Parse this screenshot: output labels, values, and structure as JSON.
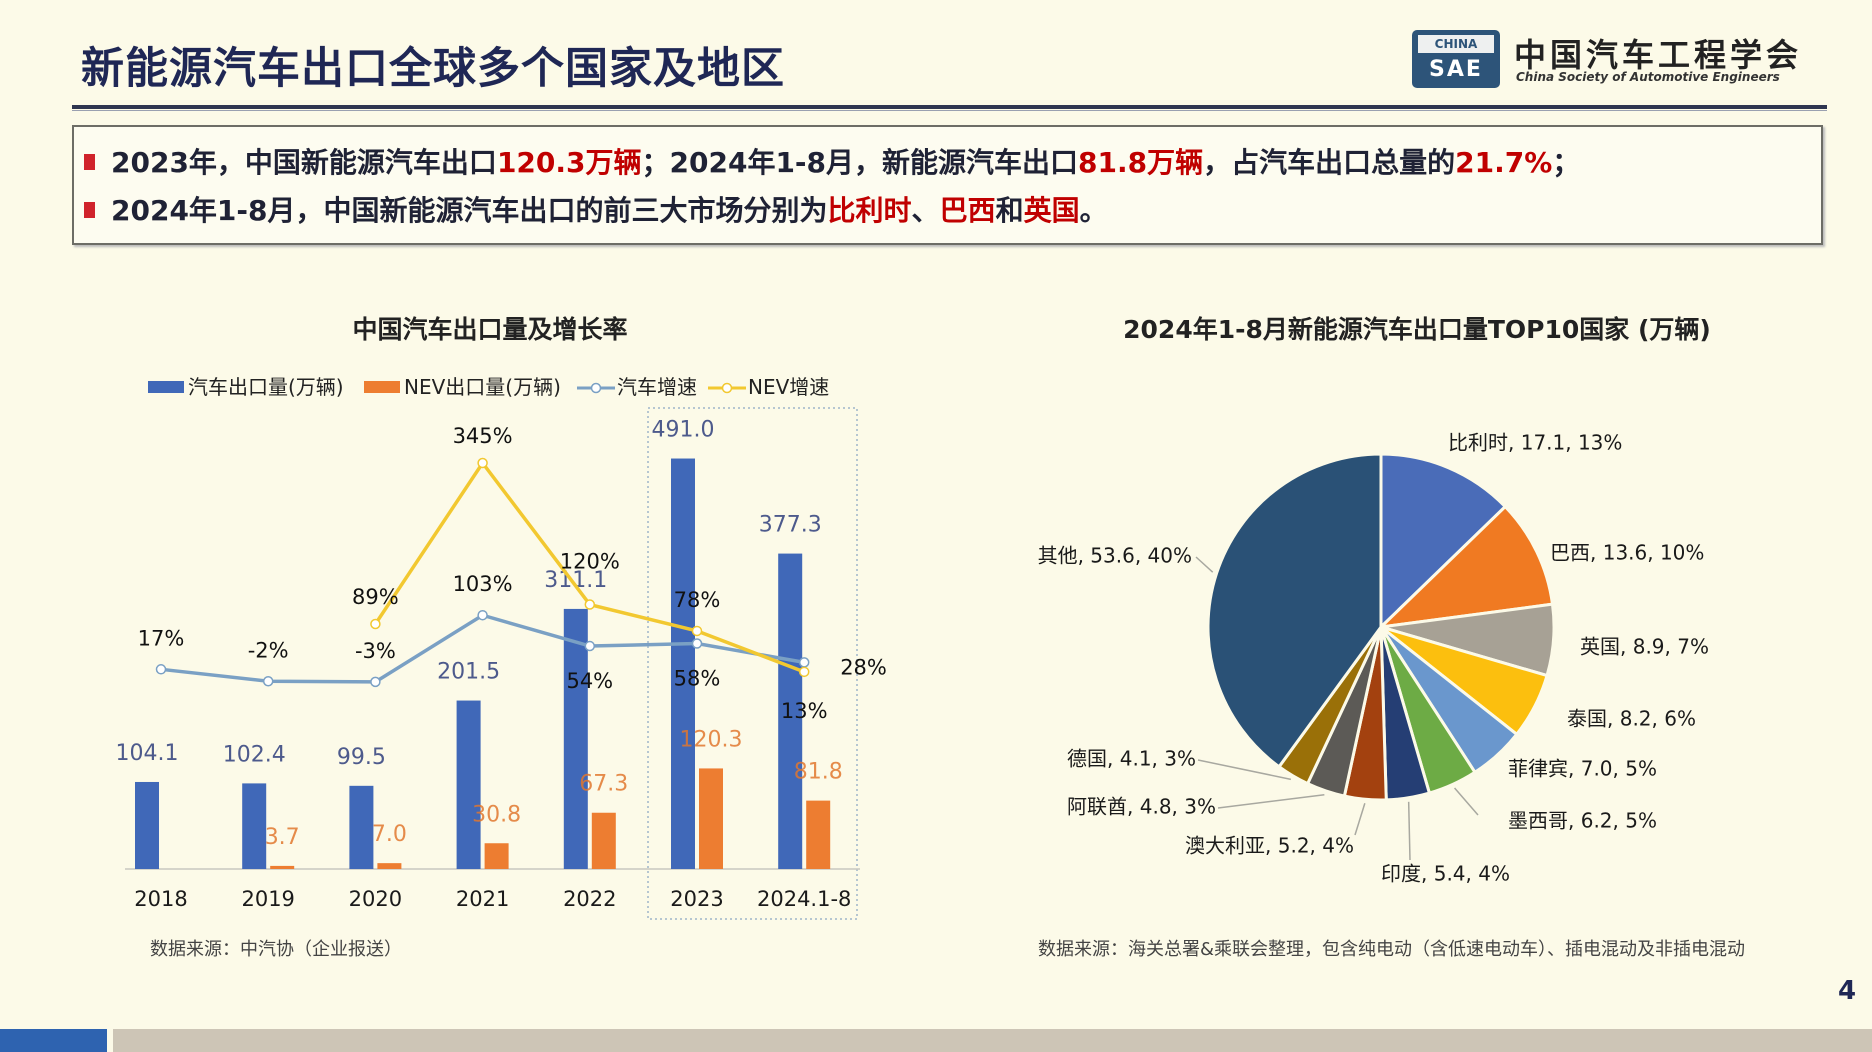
{
  "title": "新能源汽车出口全球多个国家及地区",
  "logo": {
    "badge_top": "CHINA",
    "badge_bottom": "SAE",
    "name_cn": "中国汽车工程学会",
    "name_en": "China Society of Automotive Engineers"
  },
  "summary": {
    "line1": [
      {
        "text": "2023年，中国新能源汽车出口",
        "highlight": false
      },
      {
        "text": "120.3万辆",
        "highlight": true
      },
      {
        "text": "；2024年1-8月，新能源汽车出口",
        "highlight": false
      },
      {
        "text": "81.8万辆",
        "highlight": true
      },
      {
        "text": "，占汽车出口总量的",
        "highlight": false
      },
      {
        "text": "21.7%",
        "highlight": true
      },
      {
        "text": "；",
        "highlight": false
      }
    ],
    "line2": [
      {
        "text": "2024年1-8月，中国新能源汽车出口的前三大市场分别为",
        "highlight": false
      },
      {
        "text": "比利时",
        "highlight": true
      },
      {
        "text": "、",
        "highlight": false
      },
      {
        "text": "巴西",
        "highlight": true
      },
      {
        "text": "和",
        "highlight": false
      },
      {
        "text": "英国",
        "highlight": true
      },
      {
        "text": "。",
        "highlight": false
      }
    ]
  },
  "page_number": "4",
  "colors": {
    "accent_red": "#c00000",
    "title": "#1f2755",
    "car_bar": "#4068b8",
    "nev_bar": "#ed7d31",
    "car_line": "#7aa0c4",
    "nev_line": "#f2c830"
  },
  "chart_data": [
    {
      "type": "bar+line",
      "title": "中国汽车出口量及增长率",
      "source": "数据来源：中汽协（企业报送）",
      "categories": [
        "2018",
        "2019",
        "2020",
        "2021",
        "2022",
        "2023",
        "2024.1-8"
      ],
      "highlighted_categories": [
        "2023",
        "2024.1-8"
      ],
      "grid": false,
      "legend_position": "top",
      "series": [
        {
          "name": "汽车出口量(万辆)",
          "type": "bar",
          "axis": "primary",
          "values": [
            104.1,
            102.4,
            99.5,
            201.5,
            311.1,
            491.0,
            377.3
          ],
          "labels": [
            "104.1",
            "102.4",
            "99.5",
            "201.5",
            "311.1",
            "491.0",
            "377.3"
          ]
        },
        {
          "name": "NEV出口量(万辆)",
          "type": "bar",
          "axis": "primary",
          "values": [
            null,
            3.7,
            7.0,
            30.8,
            67.3,
            120.3,
            81.8
          ],
          "labels": [
            null,
            "3.7",
            "7.0",
            "30.8",
            "67.3",
            "120.3",
            "81.8"
          ]
        },
        {
          "name": "汽车增速",
          "type": "line",
          "axis": "secondary",
          "unit": "%",
          "values": [
            17,
            -2,
            -3,
            103,
            54,
            58,
            28
          ],
          "labels": [
            "17%",
            "-2%",
            "-3%",
            "103%",
            "54%",
            "58%",
            "28%"
          ]
        },
        {
          "name": "NEV增速",
          "type": "line",
          "axis": "secondary",
          "unit": "%",
          "values": [
            null,
            null,
            89,
            345,
            120,
            78,
            13
          ],
          "labels": [
            null,
            null,
            "89%",
            "345%",
            "120%",
            "78%",
            "13%"
          ]
        }
      ]
    },
    {
      "type": "pie",
      "title": "2024年1-8月新能源汽车出口量TOP10国家 (万辆)",
      "source": "数据来源：海关总署&乘联会整理，包含纯电动（含低速电动车）、插电混动及非插电混动",
      "slices": [
        {
          "label": "比利时",
          "value": 17.1,
          "percent": "13%",
          "color": "#4a6cb8",
          "text": "比利时, 17.1, 13%"
        },
        {
          "label": "巴西",
          "value": 13.6,
          "percent": "10%",
          "color": "#f07a22",
          "text": "巴西, 13.6, 10%"
        },
        {
          "label": "英国",
          "value": 8.9,
          "percent": "7%",
          "color": "#a7a195",
          "text": "英国, 8.9, 7%"
        },
        {
          "label": "泰国",
          "value": 8.2,
          "percent": "6%",
          "color": "#fcbf0e",
          "text": "泰国, 8.2, 6%"
        },
        {
          "label": "菲律宾",
          "value": 7.0,
          "percent": "5%",
          "color": "#6a97cd",
          "text": "菲律宾, 7.0, 5%"
        },
        {
          "label": "墨西哥",
          "value": 6.2,
          "percent": "5%",
          "color": "#6dab45",
          "text": "墨西哥, 6.2, 5%"
        },
        {
          "label": "印度",
          "value": 5.4,
          "percent": "4%",
          "color": "#253e74",
          "text": "印度, 5.4, 4%"
        },
        {
          "label": "澳大利亚",
          "value": 5.2,
          "percent": "4%",
          "color": "#a3410f",
          "text": "澳大利亚, 5.2, 4%"
        },
        {
          "label": "阿联酋",
          "value": 4.8,
          "percent": "3%",
          "color": "#5c5a56",
          "text": "阿联酋, 4.8, 3%"
        },
        {
          "label": "德国",
          "value": 4.1,
          "percent": "3%",
          "color": "#9a7008",
          "text": "德国, 4.1, 3%"
        },
        {
          "label": "其他",
          "value": 53.6,
          "percent": "40%",
          "color": "#2a5176",
          "text": "其他, 53.6, 40%"
        }
      ]
    }
  ]
}
